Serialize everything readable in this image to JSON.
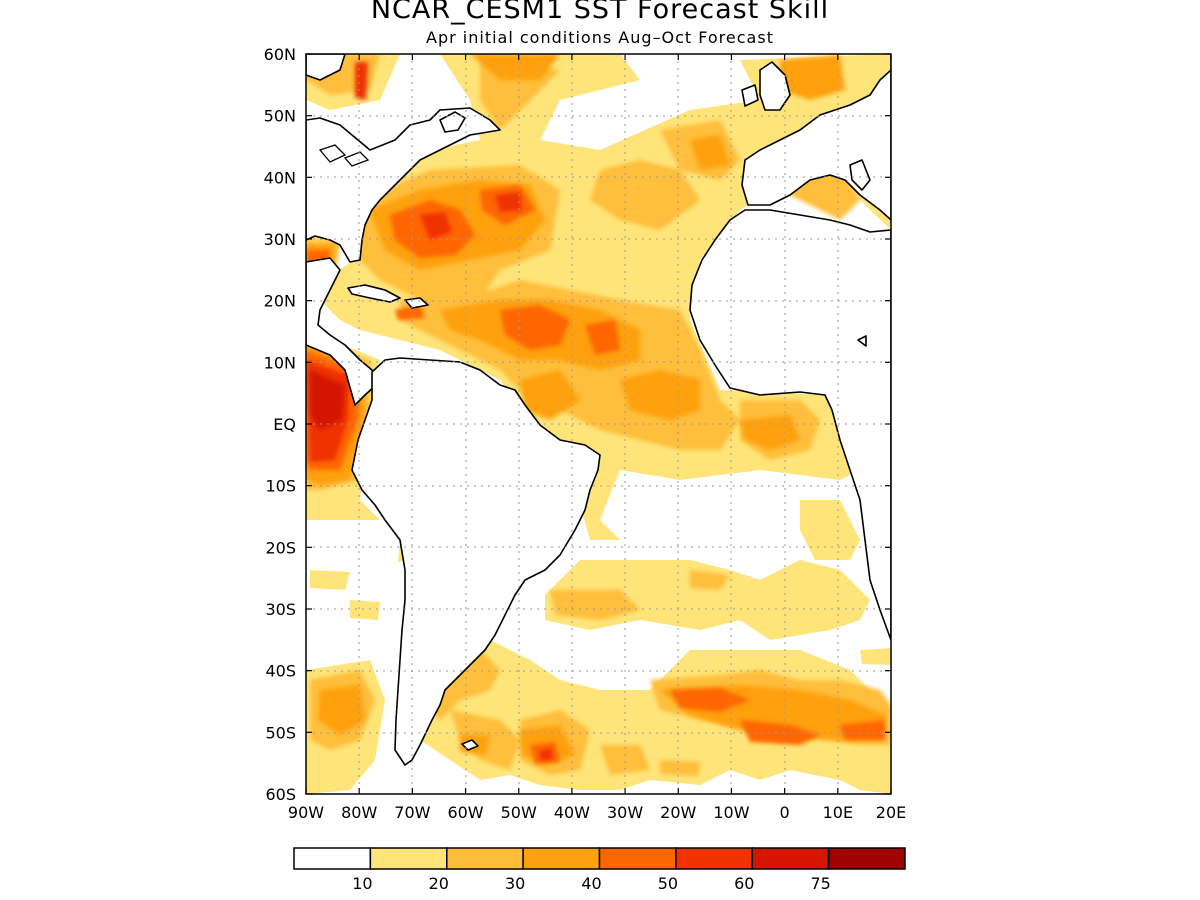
{
  "title": "NCAR_CESM1 SST Forecast Skill",
  "subtitle": "Apr initial conditions  Aug–Oct Forecast",
  "map": {
    "lon_range": [
      -90,
      20
    ],
    "lat_range": [
      -60,
      60
    ],
    "grid": "dotted",
    "lat_ticks": [
      "60N",
      "50N",
      "40N",
      "30N",
      "20N",
      "10N",
      "EQ",
      "10S",
      "20S",
      "30S",
      "40S",
      "50S",
      "60S"
    ],
    "lon_ticks": [
      "90W",
      "80W",
      "70W",
      "60W",
      "50W",
      "40W",
      "30W",
      "20W",
      "10W",
      "0",
      "10E",
      "20E"
    ]
  },
  "legend": {
    "labels": [
      "10",
      "20",
      "30",
      "40",
      "50",
      "60",
      "75"
    ],
    "colors": [
      "#ffffff",
      "#ffe479",
      "#ffbe3a",
      "#ffa00f",
      "#ff6600",
      "#f03200",
      "#d41500",
      "#a00000"
    ]
  }
}
